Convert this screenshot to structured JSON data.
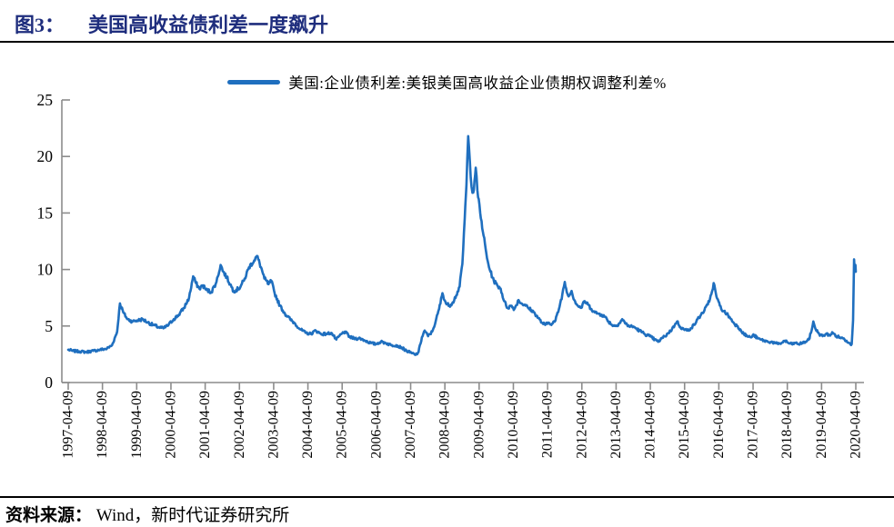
{
  "figure": {
    "title_tag": "图3：",
    "title_text": "美国高收益债利差一度飙升",
    "source_label": "资料来源：",
    "source_text": "Wind，新时代证券研究所"
  },
  "chart_data": {
    "type": "line",
    "title": "图3：美国高收益债利差一度飙升",
    "legend": [
      "美国:企业债利差:美银美国高收益企业债期权调整利差%"
    ],
    "legend_position": "top-center",
    "grid": false,
    "ylabel": "",
    "xlabel": "",
    "ylim": [
      0,
      25
    ],
    "yticks": [
      0,
      5,
      10,
      15,
      20,
      25
    ],
    "x_range_years": [
      1997.27,
      2020.27
    ],
    "xtick_labels": [
      "1997-04-09",
      "1998-04-09",
      "1999-04-09",
      "2000-04-09",
      "2001-04-09",
      "2002-04-09",
      "2003-04-09",
      "2004-04-09",
      "2005-04-09",
      "2006-04-09",
      "2007-04-09",
      "2008-04-09",
      "2009-04-09",
      "2010-04-09",
      "2011-04-09",
      "2012-04-09",
      "2013-04-09",
      "2014-04-09",
      "2015-04-09",
      "2016-04-09",
      "2017-04-09",
      "2018-04-09",
      "2019-04-09",
      "2020-04-09"
    ],
    "axis_color": "#8C8C8C",
    "tick_label_color": "#000000",
    "series": [
      {
        "name": "美国:企业债利差:美银美国高收益企业债期权调整利差%",
        "color": "#1F6FBF",
        "unit": "%",
        "keypoints": [
          [
            1997.27,
            2.9
          ],
          [
            1997.4,
            2.8
          ],
          [
            1997.6,
            2.75
          ],
          [
            1997.8,
            2.7
          ],
          [
            1998.0,
            2.8
          ],
          [
            1998.2,
            2.9
          ],
          [
            1998.4,
            3.0
          ],
          [
            1998.55,
            3.3
          ],
          [
            1998.7,
            4.5
          ],
          [
            1998.78,
            7.0
          ],
          [
            1998.88,
            6.2
          ],
          [
            1999.0,
            5.6
          ],
          [
            1999.15,
            5.4
          ],
          [
            1999.3,
            5.5
          ],
          [
            1999.45,
            5.6
          ],
          [
            1999.6,
            5.3
          ],
          [
            1999.75,
            5.1
          ],
          [
            1999.9,
            4.9
          ],
          [
            2000.05,
            4.8
          ],
          [
            2000.2,
            5.1
          ],
          [
            2000.35,
            5.6
          ],
          [
            2000.5,
            6.0
          ],
          [
            2000.65,
            6.6
          ],
          [
            2000.8,
            7.5
          ],
          [
            2000.92,
            9.4
          ],
          [
            2001.0,
            8.8
          ],
          [
            2001.1,
            8.3
          ],
          [
            2001.2,
            8.6
          ],
          [
            2001.3,
            8.2
          ],
          [
            2001.45,
            8.0
          ],
          [
            2001.6,
            8.9
          ],
          [
            2001.72,
            10.4
          ],
          [
            2001.8,
            9.8
          ],
          [
            2001.9,
            9.3
          ],
          [
            2002.0,
            8.7
          ],
          [
            2002.1,
            8.1
          ],
          [
            2002.25,
            8.3
          ],
          [
            2002.4,
            9.0
          ],
          [
            2002.55,
            10.2
          ],
          [
            2002.7,
            10.8
          ],
          [
            2002.78,
            11.2
          ],
          [
            2002.9,
            10.2
          ],
          [
            2003.0,
            9.2
          ],
          [
            2003.12,
            8.7
          ],
          [
            2003.2,
            9.0
          ],
          [
            2003.3,
            7.9
          ],
          [
            2003.45,
            6.8
          ],
          [
            2003.6,
            6.1
          ],
          [
            2003.75,
            5.6
          ],
          [
            2003.9,
            5.2
          ],
          [
            2004.05,
            4.7
          ],
          [
            2004.2,
            4.4
          ],
          [
            2004.35,
            4.3
          ],
          [
            2004.5,
            4.6
          ],
          [
            2004.65,
            4.3
          ],
          [
            2004.8,
            4.3
          ],
          [
            2004.95,
            4.4
          ],
          [
            2005.1,
            3.8
          ],
          [
            2005.25,
            4.3
          ],
          [
            2005.35,
            4.5
          ],
          [
            2005.5,
            4.0
          ],
          [
            2005.65,
            3.9
          ],
          [
            2005.8,
            3.9
          ],
          [
            2005.95,
            3.7
          ],
          [
            2006.1,
            3.5
          ],
          [
            2006.25,
            3.4
          ],
          [
            2006.4,
            3.6
          ],
          [
            2006.55,
            3.5
          ],
          [
            2006.7,
            3.3
          ],
          [
            2006.85,
            3.3
          ],
          [
            2007.0,
            3.1
          ],
          [
            2007.15,
            2.8
          ],
          [
            2007.3,
            2.6
          ],
          [
            2007.42,
            2.45
          ],
          [
            2007.5,
            2.7
          ],
          [
            2007.6,
            4.0
          ],
          [
            2007.68,
            4.6
          ],
          [
            2007.78,
            4.1
          ],
          [
            2007.9,
            4.5
          ],
          [
            2008.0,
            5.4
          ],
          [
            2008.1,
            6.5
          ],
          [
            2008.2,
            7.9
          ],
          [
            2008.3,
            7.0
          ],
          [
            2008.4,
            6.8
          ],
          [
            2008.5,
            7.1
          ],
          [
            2008.6,
            7.7
          ],
          [
            2008.7,
            8.5
          ],
          [
            2008.78,
            10.5
          ],
          [
            2008.85,
            14.5
          ],
          [
            2008.9,
            17.5
          ],
          [
            2008.95,
            21.8
          ],
          [
            2009.0,
            19.5
          ],
          [
            2009.05,
            17.3
          ],
          [
            2009.1,
            16.8
          ],
          [
            2009.17,
            19.0
          ],
          [
            2009.22,
            17.0
          ],
          [
            2009.3,
            15.0
          ],
          [
            2009.4,
            13.0
          ],
          [
            2009.5,
            11.0
          ],
          [
            2009.6,
            9.8
          ],
          [
            2009.7,
            9.0
          ],
          [
            2009.8,
            8.6
          ],
          [
            2009.9,
            8.3
          ],
          [
            2010.0,
            7.2
          ],
          [
            2010.1,
            6.6
          ],
          [
            2010.2,
            6.8
          ],
          [
            2010.3,
            6.5
          ],
          [
            2010.42,
            7.3
          ],
          [
            2010.5,
            7.0
          ],
          [
            2010.6,
            6.9
          ],
          [
            2010.7,
            6.6
          ],
          [
            2010.8,
            6.4
          ],
          [
            2010.9,
            6.1
          ],
          [
            2011.0,
            5.7
          ],
          [
            2011.1,
            5.3
          ],
          [
            2011.2,
            5.1
          ],
          [
            2011.3,
            5.3
          ],
          [
            2011.4,
            5.2
          ],
          [
            2011.5,
            5.5
          ],
          [
            2011.6,
            6.5
          ],
          [
            2011.7,
            7.8
          ],
          [
            2011.77,
            8.9
          ],
          [
            2011.83,
            8.0
          ],
          [
            2011.9,
            7.7
          ],
          [
            2011.97,
            8.1
          ],
          [
            2012.05,
            7.3
          ],
          [
            2012.15,
            6.8
          ],
          [
            2012.25,
            6.6
          ],
          [
            2012.35,
            7.2
          ],
          [
            2012.45,
            6.9
          ],
          [
            2012.55,
            6.5
          ],
          [
            2012.65,
            6.2
          ],
          [
            2012.75,
            6.1
          ],
          [
            2012.85,
            6.0
          ],
          [
            2012.95,
            5.8
          ],
          [
            2013.05,
            5.4
          ],
          [
            2013.15,
            5.1
          ],
          [
            2013.25,
            5.0
          ],
          [
            2013.35,
            5.2
          ],
          [
            2013.45,
            5.6
          ],
          [
            2013.55,
            5.2
          ],
          [
            2013.65,
            5.0
          ],
          [
            2013.8,
            4.9
          ],
          [
            2013.95,
            4.6
          ],
          [
            2014.1,
            4.3
          ],
          [
            2014.25,
            4.1
          ],
          [
            2014.4,
            3.8
          ],
          [
            2014.5,
            3.6
          ],
          [
            2014.6,
            3.9
          ],
          [
            2014.7,
            4.1
          ],
          [
            2014.8,
            4.4
          ],
          [
            2014.9,
            4.7
          ],
          [
            2015.0,
            5.2
          ],
          [
            2015.05,
            5.4
          ],
          [
            2015.15,
            4.9
          ],
          [
            2015.25,
            4.7
          ],
          [
            2015.35,
            4.6
          ],
          [
            2015.45,
            4.8
          ],
          [
            2015.55,
            5.1
          ],
          [
            2015.65,
            5.6
          ],
          [
            2015.75,
            6.0
          ],
          [
            2015.85,
            6.4
          ],
          [
            2015.95,
            6.9
          ],
          [
            2016.05,
            7.8
          ],
          [
            2016.12,
            8.8
          ],
          [
            2016.2,
            7.6
          ],
          [
            2016.3,
            6.8
          ],
          [
            2016.4,
            6.3
          ],
          [
            2016.5,
            6.1
          ],
          [
            2016.6,
            5.7
          ],
          [
            2016.7,
            5.3
          ],
          [
            2016.8,
            5.0
          ],
          [
            2016.9,
            4.7
          ],
          [
            2017.0,
            4.3
          ],
          [
            2017.1,
            4.1
          ],
          [
            2017.2,
            4.0
          ],
          [
            2017.3,
            4.2
          ],
          [
            2017.4,
            3.9
          ],
          [
            2017.5,
            3.8
          ],
          [
            2017.6,
            3.7
          ],
          [
            2017.7,
            3.6
          ],
          [
            2017.8,
            3.6
          ],
          [
            2017.9,
            3.5
          ],
          [
            2018.0,
            3.4
          ],
          [
            2018.1,
            3.5
          ],
          [
            2018.2,
            3.7
          ],
          [
            2018.3,
            3.5
          ],
          [
            2018.4,
            3.4
          ],
          [
            2018.5,
            3.5
          ],
          [
            2018.6,
            3.4
          ],
          [
            2018.7,
            3.5
          ],
          [
            2018.8,
            3.6
          ],
          [
            2018.9,
            3.8
          ],
          [
            2018.98,
            4.6
          ],
          [
            2019.03,
            5.4
          ],
          [
            2019.1,
            4.7
          ],
          [
            2019.2,
            4.3
          ],
          [
            2019.3,
            4.1
          ],
          [
            2019.4,
            4.3
          ],
          [
            2019.5,
            4.2
          ],
          [
            2019.6,
            4.4
          ],
          [
            2019.7,
            4.1
          ],
          [
            2019.8,
            4.0
          ],
          [
            2019.9,
            3.9
          ],
          [
            2020.0,
            3.7
          ],
          [
            2020.08,
            3.5
          ],
          [
            2020.15,
            3.4
          ],
          [
            2020.19,
            5.5
          ],
          [
            2020.22,
            10.9
          ],
          [
            2020.24,
            9.8
          ],
          [
            2020.26,
            10.4
          ],
          [
            2020.27,
            9.8
          ]
        ]
      }
    ],
    "noise": {
      "seed": 7,
      "amplitude": 0.07,
      "relative": 0.013,
      "step_years": 0.02
    }
  }
}
